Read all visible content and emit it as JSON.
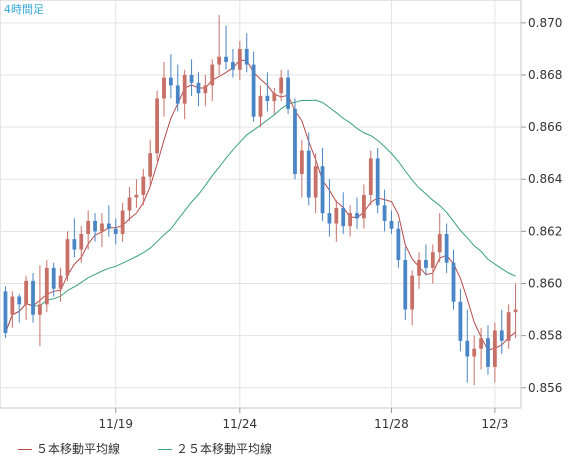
{
  "chart_data": {
    "type": "candlestick",
    "timeframe_label": "4時間足",
    "x_tick_labels": [
      "11/19",
      "11/24",
      "11/28",
      "12/3"
    ],
    "y_tick_labels": [
      "0.870",
      "0.868",
      "0.866",
      "0.864",
      "0.862",
      "0.860",
      "0.858",
      "0.856"
    ],
    "ylim": [
      0.8553,
      0.8708
    ],
    "y_ticks": [
      0.87,
      0.868,
      0.866,
      0.864,
      0.862,
      0.86,
      0.858,
      0.856
    ],
    "grid": true,
    "legend": [
      {
        "label": "５本移動平均線",
        "color": "#b84a4a"
      },
      {
        "label": "２５本移動平均線",
        "color": "#3aa37a"
      }
    ],
    "colors": {
      "up": "#c77067",
      "down": "#4a86c5",
      "ma5": "#b84a4a",
      "ma25": "#3aa37a",
      "timeframe": "#36a9d6"
    },
    "candles": [
      [
        0.8597,
        0.8599,
        0.8579,
        0.8581
      ],
      [
        0.8588,
        0.8597,
        0.8583,
        0.8595
      ],
      [
        0.8595,
        0.8596,
        0.8585,
        0.8592
      ],
      [
        0.8592,
        0.8603,
        0.8586,
        0.8601
      ],
      [
        0.8601,
        0.8604,
        0.8585,
        0.8588
      ],
      [
        0.8588,
        0.8607,
        0.8576,
        0.8592
      ],
      [
        0.8592,
        0.8609,
        0.8589,
        0.8606
      ],
      [
        0.8606,
        0.8608,
        0.8595,
        0.8598
      ],
      [
        0.8598,
        0.8606,
        0.8593,
        0.8603
      ],
      [
        0.8603,
        0.862,
        0.8601,
        0.8617
      ],
      [
        0.8617,
        0.8625,
        0.861,
        0.8613
      ],
      [
        0.8613,
        0.8622,
        0.8608,
        0.8619
      ],
      [
        0.8619,
        0.8628,
        0.8613,
        0.8624
      ],
      [
        0.8624,
        0.8627,
        0.8616,
        0.862
      ],
      [
        0.862,
        0.8627,
        0.8614,
        0.8623
      ],
      [
        0.8623,
        0.863,
        0.8618,
        0.8621
      ],
      [
        0.8621,
        0.8625,
        0.8615,
        0.8619
      ],
      [
        0.8619,
        0.8631,
        0.8616,
        0.8628
      ],
      [
        0.8628,
        0.8637,
        0.8624,
        0.8633
      ],
      [
        0.8633,
        0.864,
        0.8629,
        0.8634
      ],
      [
        0.8634,
        0.8644,
        0.863,
        0.8641
      ],
      [
        0.8641,
        0.8655,
        0.8637,
        0.865
      ],
      [
        0.865,
        0.8674,
        0.8647,
        0.8671
      ],
      [
        0.8671,
        0.8685,
        0.8664,
        0.8679
      ],
      [
        0.8679,
        0.8688,
        0.8671,
        0.8676
      ],
      [
        0.8676,
        0.8684,
        0.8666,
        0.8669
      ],
      [
        0.8669,
        0.8682,
        0.8663,
        0.868
      ],
      [
        0.868,
        0.8686,
        0.8672,
        0.8677
      ],
      [
        0.8677,
        0.8681,
        0.8668,
        0.8673
      ],
      [
        0.8673,
        0.868,
        0.8668,
        0.8676
      ],
      [
        0.8676,
        0.8686,
        0.867,
        0.8684
      ],
      [
        0.8684,
        0.8703,
        0.868,
        0.8687
      ],
      [
        0.8687,
        0.8699,
        0.8682,
        0.8685
      ],
      [
        0.8685,
        0.869,
        0.8679,
        0.8682
      ],
      [
        0.8682,
        0.8693,
        0.8678,
        0.869
      ],
      [
        0.869,
        0.8696,
        0.8681,
        0.8684
      ],
      [
        0.8684,
        0.8689,
        0.8662,
        0.8664
      ],
      [
        0.8664,
        0.8676,
        0.866,
        0.8672
      ],
      [
        0.8672,
        0.8681,
        0.8666,
        0.867
      ],
      [
        0.867,
        0.8675,
        0.8665,
        0.8673
      ],
      [
        0.8673,
        0.8682,
        0.867,
        0.8679
      ],
      [
        0.8679,
        0.8682,
        0.8665,
        0.8667
      ],
      [
        0.8667,
        0.8671,
        0.864,
        0.8642
      ],
      [
        0.8642,
        0.8655,
        0.8633,
        0.8651
      ],
      [
        0.8651,
        0.8658,
        0.863,
        0.8633
      ],
      [
        0.8633,
        0.865,
        0.8627,
        0.8645
      ],
      [
        0.8645,
        0.8652,
        0.8624,
        0.8627
      ],
      [
        0.8627,
        0.864,
        0.8618,
        0.8623
      ],
      [
        0.8623,
        0.8632,
        0.8616,
        0.8629
      ],
      [
        0.8629,
        0.8635,
        0.8619,
        0.8622
      ],
      [
        0.8622,
        0.863,
        0.8618,
        0.8627
      ],
      [
        0.8627,
        0.8633,
        0.8621,
        0.8625
      ],
      [
        0.8625,
        0.8638,
        0.8621,
        0.8634
      ],
      [
        0.8634,
        0.8651,
        0.863,
        0.8648
      ],
      [
        0.8648,
        0.8652,
        0.8627,
        0.863
      ],
      [
        0.863,
        0.8636,
        0.862,
        0.8624
      ],
      [
        0.8624,
        0.8628,
        0.8619,
        0.8621
      ],
      [
        0.8621,
        0.8624,
        0.8606,
        0.8609
      ],
      [
        0.8609,
        0.8614,
        0.8586,
        0.859
      ],
      [
        0.859,
        0.8605,
        0.8584,
        0.8603
      ],
      [
        0.8603,
        0.8612,
        0.8598,
        0.8609
      ],
      [
        0.8609,
        0.8615,
        0.8603,
        0.8606
      ],
      [
        0.8606,
        0.8615,
        0.86,
        0.8612
      ],
      [
        0.8612,
        0.8627,
        0.8608,
        0.8619
      ],
      [
        0.8619,
        0.8623,
        0.8604,
        0.8608
      ],
      [
        0.8608,
        0.8613,
        0.859,
        0.8593
      ],
      [
        0.8593,
        0.8598,
        0.8574,
        0.8578
      ],
      [
        0.8578,
        0.859,
        0.8562,
        0.8572
      ],
      [
        0.8572,
        0.858,
        0.8561,
        0.8575
      ],
      [
        0.8575,
        0.8583,
        0.8567,
        0.8579
      ],
      [
        0.8579,
        0.8584,
        0.8565,
        0.8568
      ],
      [
        0.8568,
        0.8585,
        0.8562,
        0.8582
      ],
      [
        0.8582,
        0.859,
        0.8573,
        0.8578
      ],
      [
        0.8578,
        0.8592,
        0.8575,
        0.8589
      ],
      [
        0.8589,
        0.86,
        0.8579,
        0.859
      ]
    ]
  }
}
